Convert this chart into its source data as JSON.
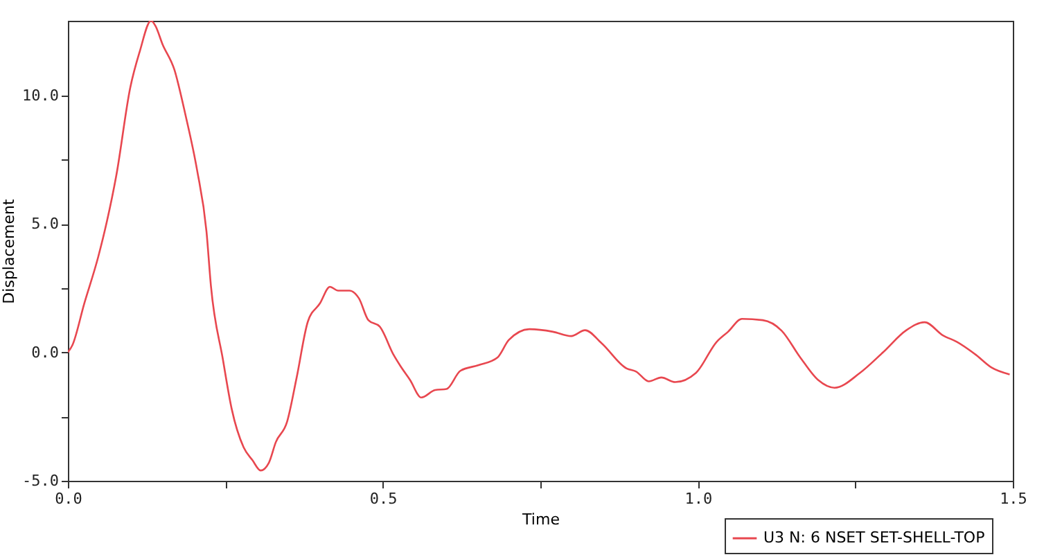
{
  "chart_data": {
    "type": "line",
    "xlabel": "Time",
    "ylabel": "Displacement",
    "xlim": [
      0,
      1.5
    ],
    "ylim": [
      -5,
      12.9
    ],
    "xticks": [
      {
        "value": 0,
        "label": "0.0"
      },
      {
        "value": 0.25,
        "label": null
      },
      {
        "value": 0.5,
        "label": "0.5"
      },
      {
        "value": 0.75,
        "label": null
      },
      {
        "value": 1,
        "label": "1.0"
      },
      {
        "value": 1.25,
        "label": null
      },
      {
        "value": 1.5,
        "label": "1.5"
      }
    ],
    "yticks": [
      {
        "value": -5,
        "label": "-5.0"
      },
      {
        "value": -2.5,
        "label": null
      },
      {
        "value": 0,
        "label": "0.0"
      },
      {
        "value": 2.5,
        "label": null
      },
      {
        "value": 5,
        "label": "5.0"
      },
      {
        "value": 7.5,
        "label": null
      },
      {
        "value": 10,
        "label": "10.0"
      }
    ],
    "grid": false,
    "legend": "bottom right",
    "marker": "none",
    "line_style": "solid",
    "x": [
      0,
      0.007,
      0.026,
      0.048,
      0.062,
      0.077,
      0.099,
      0.114,
      0.132,
      0.139,
      0.15,
      0.169,
      0.187,
      0.205,
      0.22,
      0.227,
      0.246,
      0.26,
      0.279,
      0.293,
      0.306,
      0.319,
      0.33,
      0.348,
      0.363,
      0.381,
      0.4,
      0.416,
      0.429,
      0.447,
      0.462,
      0.477,
      0.495,
      0.517,
      0.528,
      0.543,
      0.561,
      0.583,
      0.601,
      0.623,
      0.652,
      0.682,
      0.7,
      0.733,
      0.77,
      0.799,
      0.821,
      0.847,
      0.887,
      0.902,
      0.922,
      0.942,
      0.964,
      0.997,
      1.03,
      1.048,
      1.07,
      1.103,
      1.133,
      1.162,
      1.191,
      1.217,
      1.257,
      1.294,
      1.331,
      1.36,
      1.389,
      1.411,
      1.441,
      1.466,
      1.495
    ],
    "series": [
      {
        "name": "U3 N: 6 NSET SET-SHELL-TOP",
        "color": "#e8474f",
        "values": [
          0,
          0.27,
          1.9,
          3.7,
          5.1,
          6.9,
          10.3,
          11.7,
          12.9,
          12.7,
          12.0,
          11.0,
          9.2,
          7.1,
          4.7,
          2.6,
          -0.27,
          -2.2,
          -3.7,
          -4.2,
          -4.6,
          -4.3,
          -3.5,
          -2.7,
          -1.0,
          1.2,
          1.9,
          2.55,
          2.4,
          2.4,
          2.1,
          1.25,
          1.0,
          -0.1,
          -0.54,
          -1.07,
          -1.76,
          -1.47,
          -1.43,
          -0.72,
          -0.5,
          -0.2,
          0.48,
          0.9,
          0.8,
          0.63,
          0.86,
          0.36,
          -0.63,
          -0.75,
          -1.13,
          -0.98,
          -1.16,
          -0.8,
          0.41,
          0.8,
          1.3,
          1.25,
          0.84,
          -0.18,
          -1.08,
          -1.38,
          -0.81,
          0,
          0.86,
          1.17,
          0.66,
          0.41,
          -0.09,
          -0.59,
          -0.86
        ]
      }
    ]
  }
}
